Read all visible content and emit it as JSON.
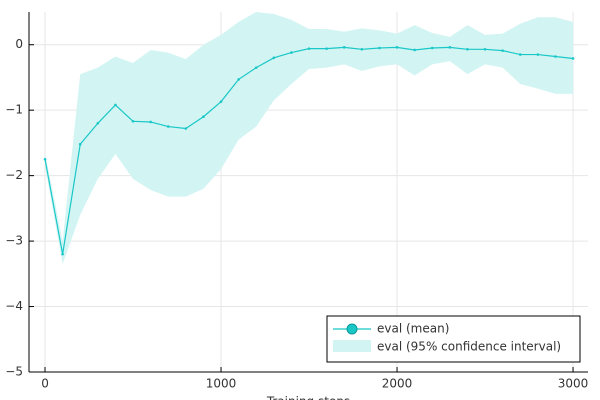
{
  "chart_data": {
    "type": "line",
    "x_label": "Training steps",
    "x": [
      0,
      100,
      200,
      300,
      400,
      500,
      600,
      700,
      800,
      900,
      1000,
      1100,
      1200,
      1300,
      1400,
      1500,
      1600,
      1700,
      1800,
      1900,
      2000,
      2100,
      2200,
      2300,
      2400,
      2500,
      2600,
      2700,
      2800,
      2900,
      3000
    ],
    "series": [
      {
        "name": "eval (mean)",
        "color": "#19c7c7",
        "values": [
          -1.75,
          -3.2,
          -1.52,
          -1.2,
          -0.92,
          -1.17,
          -1.18,
          -1.25,
          -1.28,
          -1.1,
          -0.87,
          -0.53,
          -0.35,
          -0.2,
          -0.12,
          -0.06,
          -0.06,
          -0.04,
          -0.07,
          -0.05,
          -0.04,
          -0.08,
          -0.05,
          -0.04,
          -0.07,
          -0.07,
          -0.09,
          -0.15,
          -0.15,
          -0.18,
          -0.21
        ]
      }
    ],
    "band": {
      "name": "eval (95% confidence interval)",
      "color": "#d2f5f3",
      "upper": [
        -1.65,
        -3.0,
        -0.45,
        -0.35,
        -0.18,
        -0.28,
        -0.08,
        -0.12,
        -0.22,
        0.0,
        0.15,
        0.35,
        0.5,
        0.47,
        0.38,
        0.24,
        0.24,
        0.2,
        0.25,
        0.22,
        0.17,
        0.3,
        0.18,
        0.12,
        0.3,
        0.15,
        0.17,
        0.32,
        0.42,
        0.42,
        0.35
      ],
      "lower": [
        -1.85,
        -3.35,
        -2.6,
        -2.05,
        -1.67,
        -2.05,
        -2.22,
        -2.32,
        -2.32,
        -2.2,
        -1.9,
        -1.45,
        -1.25,
        -0.85,
        -0.6,
        -0.37,
        -0.35,
        -0.3,
        -0.4,
        -0.33,
        -0.3,
        -0.47,
        -0.3,
        -0.25,
        -0.45,
        -0.3,
        -0.35,
        -0.6,
        -0.67,
        -0.75,
        -0.75
      ]
    },
    "xlim": [
      -91,
      3085
    ],
    "ylim": [
      -5,
      0.5
    ],
    "xticks": [
      0,
      1000,
      2000,
      3000
    ],
    "yticks": [
      {
        "value": -5,
        "label": "−5"
      },
      {
        "value": -4,
        "label": "−4"
      },
      {
        "value": -3,
        "label": "−3"
      },
      {
        "value": -2,
        "label": "−2"
      },
      {
        "value": -1,
        "label": "−1"
      },
      0
    ],
    "grid": true,
    "legend": "bottom-right"
  }
}
